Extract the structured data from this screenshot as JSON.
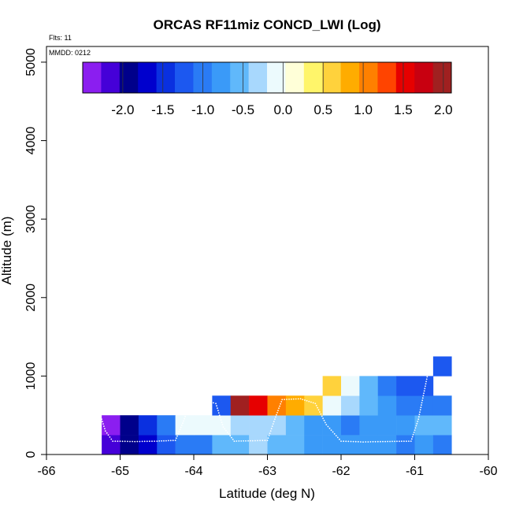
{
  "chart_data": {
    "type": "heatmap",
    "title": "ORCAS RF11miz CONCD_LWI (Log)",
    "subtitle_flights": "Flts: 11",
    "subtitle_date": "MMDD: 0212",
    "xlabel": "Latitude (deg N)",
    "ylabel": "Altitude (m)",
    "xlim": [
      -66,
      -60
    ],
    "ylim": [
      0,
      5200
    ],
    "x_ticks": [
      -66,
      -65,
      -64,
      -63,
      -62,
      -61,
      -60
    ],
    "x_tick_labels": [
      "-66",
      "-65",
      "-64",
      "-63",
      "-62",
      "-61",
      "-60"
    ],
    "y_ticks": [
      0,
      1000,
      2000,
      3000,
      4000,
      5000
    ],
    "y_tick_labels": [
      "0",
      "1000",
      "2000",
      "3000",
      "4000",
      "5000"
    ],
    "bin_width_deg": 0.25,
    "bin_height_m": 250,
    "colorbar": {
      "range": [
        -2.5,
        2.1
      ],
      "ticks": [
        -2.0,
        -1.5,
        -1.0,
        -0.5,
        0.0,
        0.5,
        1.0,
        1.5,
        2.0
      ],
      "tick_labels": [
        "-2.0",
        "-1.5",
        "-1.0",
        "-0.5",
        "0.0",
        "0.5",
        "1.0",
        "1.5",
        "2.0"
      ],
      "colors": [
        "#8b1ef0",
        "#4500d8",
        "#00008b",
        "#0000cd",
        "#0a30e0",
        "#1c58f0",
        "#2a7bf5",
        "#3a9af8",
        "#60b8fb",
        "#a8d8fd",
        "#ecfafd",
        "#ffffd8",
        "#fff56a",
        "#ffd23c",
        "#ffac00",
        "#ff8000",
        "#ff4400",
        "#e60000",
        "#c80010",
        "#a02020"
      ]
    },
    "cells": [
      {
        "lon": -65.25,
        "alt": 0,
        "value": -2.1
      },
      {
        "lon": -65.0,
        "alt": 0,
        "value": -2.0
      },
      {
        "lon": -64.75,
        "alt": 0,
        "value": -1.6
      },
      {
        "lon": -64.5,
        "alt": 0,
        "value": -1.3
      },
      {
        "lon": -64.25,
        "alt": 0,
        "value": -1.1
      },
      {
        "lon": -64.0,
        "alt": 0,
        "value": -0.9
      },
      {
        "lon": -63.75,
        "alt": 0,
        "value": -0.6
      },
      {
        "lon": -63.5,
        "alt": 0,
        "value": -0.5
      },
      {
        "lon": -63.25,
        "alt": 0,
        "value": -0.4
      },
      {
        "lon": -63.0,
        "alt": 0,
        "value": -0.5
      },
      {
        "lon": -62.75,
        "alt": 0,
        "value": -0.6
      },
      {
        "lon": -62.5,
        "alt": 0,
        "value": -0.8
      },
      {
        "lon": -62.25,
        "alt": 0,
        "value": -0.7
      },
      {
        "lon": -62.0,
        "alt": 0,
        "value": -0.7
      },
      {
        "lon": -61.75,
        "alt": 0,
        "value": -0.8
      },
      {
        "lon": -61.5,
        "alt": 0,
        "value": -0.7
      },
      {
        "lon": -61.25,
        "alt": 0,
        "value": -0.9
      },
      {
        "lon": -61.0,
        "alt": 0,
        "value": -0.7
      },
      {
        "lon": -60.75,
        "alt": 0,
        "value": -0.9
      },
      {
        "lon": -65.25,
        "alt": 250,
        "value": -2.4
      },
      {
        "lon": -65.0,
        "alt": 250,
        "value": -2.0
      },
      {
        "lon": -64.75,
        "alt": 250,
        "value": -1.5
      },
      {
        "lon": -64.5,
        "alt": 250,
        "value": -1.1
      },
      {
        "lon": -64.25,
        "alt": 250,
        "value": -0.2
      },
      {
        "lon": -64.0,
        "alt": 250,
        "value": -0.2
      },
      {
        "lon": -63.75,
        "alt": 250,
        "value": -0.2
      },
      {
        "lon": -63.5,
        "alt": 250,
        "value": -0.3
      },
      {
        "lon": -63.25,
        "alt": 250,
        "value": -0.3
      },
      {
        "lon": -63.0,
        "alt": 250,
        "value": -0.4
      },
      {
        "lon": -62.75,
        "alt": 250,
        "value": -0.5
      },
      {
        "lon": -62.5,
        "alt": 250,
        "value": -0.7
      },
      {
        "lon": -62.25,
        "alt": 250,
        "value": -0.7
      },
      {
        "lon": -62.0,
        "alt": 250,
        "value": -0.9
      },
      {
        "lon": -61.75,
        "alt": 250,
        "value": -0.8
      },
      {
        "lon": -61.5,
        "alt": 250,
        "value": -0.8
      },
      {
        "lon": -61.25,
        "alt": 250,
        "value": -0.7
      },
      {
        "lon": -61.0,
        "alt": 250,
        "value": -0.5
      },
      {
        "lon": -60.75,
        "alt": 250,
        "value": -0.6
      },
      {
        "lon": -63.75,
        "alt": 500,
        "value": -1.2
      },
      {
        "lon": -63.5,
        "alt": 500,
        "value": 2.0
      },
      {
        "lon": -63.25,
        "alt": 500,
        "value": 1.5
      },
      {
        "lon": -63.0,
        "alt": 500,
        "value": 1.1
      },
      {
        "lon": -62.75,
        "alt": 500,
        "value": 0.8
      },
      {
        "lon": -62.5,
        "alt": 500,
        "value": 0.5
      },
      {
        "lon": -62.25,
        "alt": 500,
        "value": -0.1
      },
      {
        "lon": -62.0,
        "alt": 500,
        "value": -0.3
      },
      {
        "lon": -61.75,
        "alt": 500,
        "value": -0.5
      },
      {
        "lon": -61.5,
        "alt": 500,
        "value": -0.7
      },
      {
        "lon": -61.25,
        "alt": 500,
        "value": -0.9
      },
      {
        "lon": -61.0,
        "alt": 500,
        "value": -0.9
      },
      {
        "lon": -60.75,
        "alt": 500,
        "value": -1.0
      },
      {
        "lon": -62.25,
        "alt": 750,
        "value": 0.5
      },
      {
        "lon": -62.0,
        "alt": 750,
        "value": -0.1
      },
      {
        "lon": -61.75,
        "alt": 750,
        "value": -0.5
      },
      {
        "lon": -61.5,
        "alt": 750,
        "value": -0.9
      },
      {
        "lon": -61.25,
        "alt": 750,
        "value": -1.2
      },
      {
        "lon": -61.0,
        "alt": 750,
        "value": -1.3
      },
      {
        "lon": -60.75,
        "alt": 1000,
        "value": -1.3
      }
    ],
    "flight_track": [
      [
        -65.25,
        450
      ],
      [
        -65.2,
        300
      ],
      [
        -65.1,
        170
      ],
      [
        -64.8,
        165
      ],
      [
        -64.5,
        170
      ],
      [
        -64.25,
        180
      ],
      [
        -64.15,
        400
      ],
      [
        -64.05,
        650
      ],
      [
        -63.9,
        700
      ],
      [
        -63.7,
        650
      ],
      [
        -63.6,
        350
      ],
      [
        -63.45,
        170
      ],
      [
        -63.2,
        175
      ],
      [
        -63.0,
        180
      ],
      [
        -62.9,
        450
      ],
      [
        -62.8,
        700
      ],
      [
        -62.55,
        710
      ],
      [
        -62.35,
        650
      ],
      [
        -62.2,
        380
      ],
      [
        -62.0,
        170
      ],
      [
        -61.7,
        160
      ],
      [
        -61.4,
        165
      ],
      [
        -61.05,
        170
      ],
      [
        -60.95,
        450
      ],
      [
        -60.85,
        900
      ],
      [
        -60.78,
        1230
      ]
    ]
  }
}
